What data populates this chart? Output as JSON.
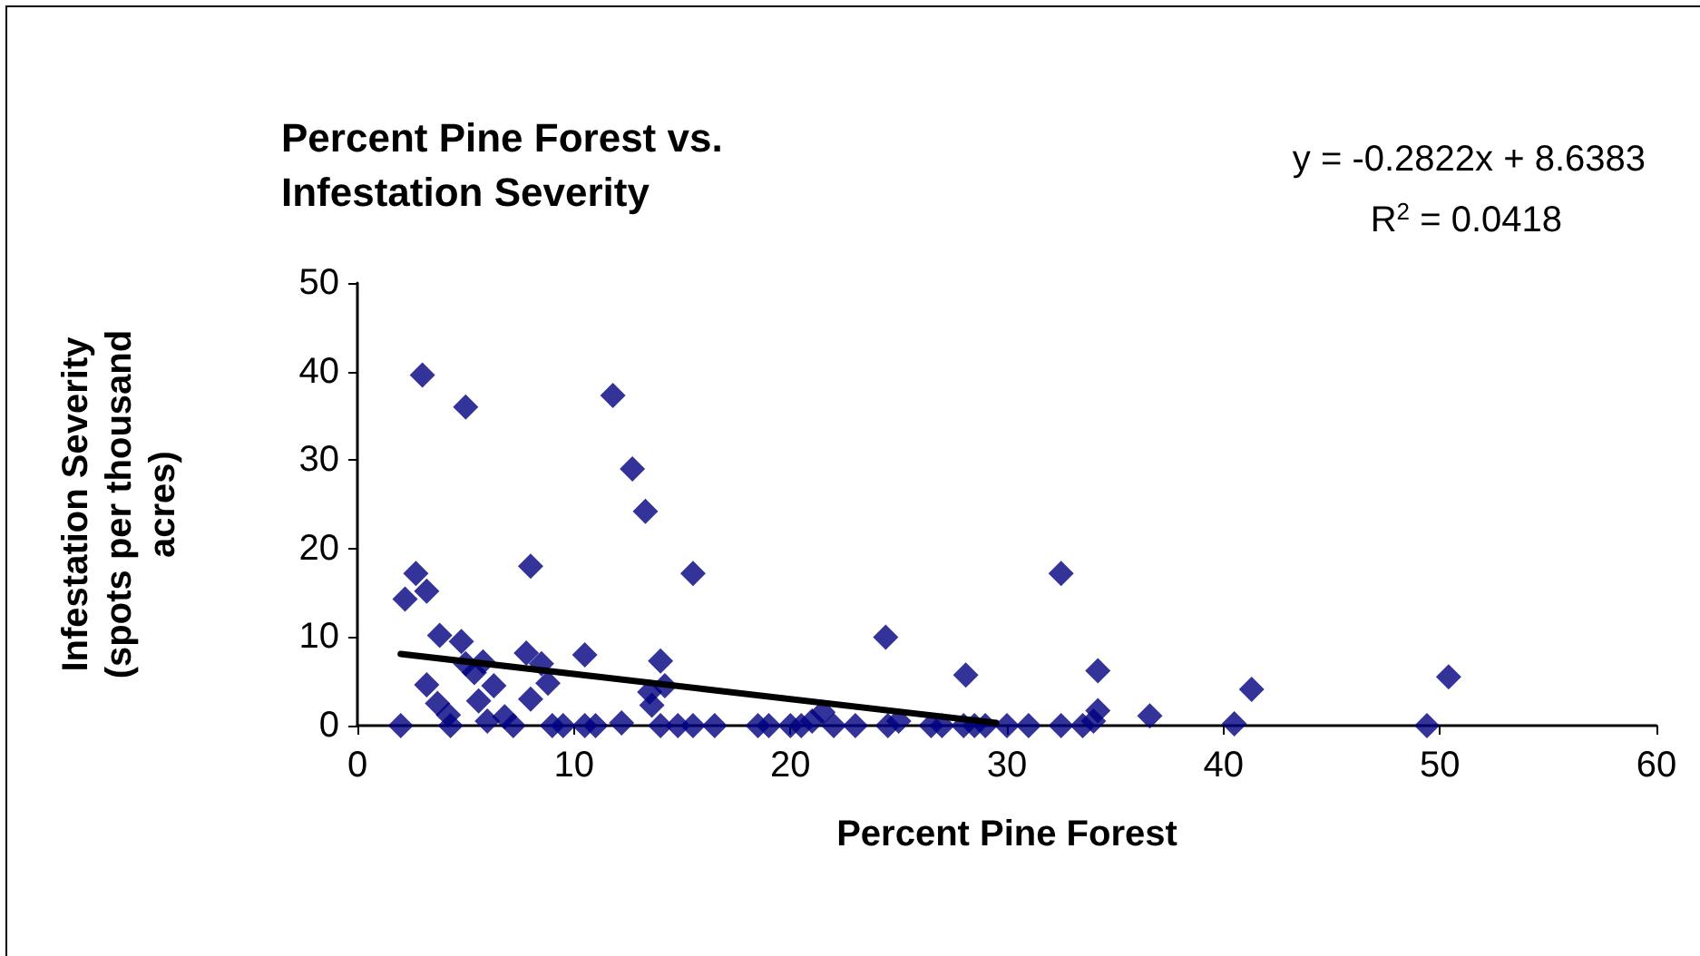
{
  "chart_data": {
    "type": "scatter",
    "title": "Percent Pine Forest vs. Infestation Severity",
    "xlabel": "Percent Pine Forest",
    "ylabel": "Infestation Severity (spots per thousand acres)",
    "annotations": [
      "y = -0.2822x + 8.6383",
      "R$^{2}$ = 0.0418"
    ],
    "marker": "diamond",
    "grid": false,
    "xlim": [
      0,
      60
    ],
    "xticks": [
      0,
      10,
      20,
      30,
      40,
      50,
      60
    ],
    "ylim": [
      0,
      50
    ],
    "yticks": [
      0,
      10,
      20,
      30,
      40,
      50
    ],
    "series": [
      {
        "color": "#000080",
        "x": [
          2.0,
          2.2,
          2.7,
          3.0,
          3.2,
          3.2,
          3.8,
          3.7,
          4.2,
          4.3,
          4.8,
          5.0,
          5.0,
          5.4,
          5.6,
          5.8,
          6.0,
          6.3,
          6.8,
          7.2,
          7.8,
          8.0,
          8.0,
          8.5,
          8.8,
          9.0,
          9.5,
          10.5,
          10.5,
          11.0,
          11.8,
          12.2,
          12.7,
          13.3,
          13.5,
          13.6,
          14.0,
          14.2,
          14.0,
          14.8,
          15.5,
          15.5,
          16.5,
          18.5,
          19.0,
          20.0,
          20.5,
          21.0,
          21.5,
          22.0,
          23.0,
          24.4,
          24.5,
          25.0,
          26.5,
          27.0,
          28.1,
          28.0,
          28.5,
          29.0,
          30.0,
          31.0,
          32.5,
          32.5,
          33.5,
          34.2,
          34.2,
          34.0,
          36.6,
          40.5,
          41.3,
          49.4,
          50.4
        ],
        "values": [
          0,
          14.3,
          17.2,
          39.6,
          15.2,
          4.6,
          10.2,
          2.5,
          1.2,
          0,
          9.5,
          36,
          7,
          6,
          2.8,
          7.2,
          0.5,
          4.5,
          1,
          0,
          8.2,
          3,
          18,
          7,
          4.8,
          0,
          0,
          8,
          0,
          0,
          37.3,
          0.3,
          29,
          24.2,
          3.8,
          2.3,
          7.3,
          4.5,
          0,
          0,
          17.2,
          0,
          0,
          0,
          0,
          0,
          0,
          0.5,
          1.5,
          0,
          0,
          10,
          0,
          0.5,
          0,
          0,
          5.7,
          0,
          0,
          0,
          0,
          0,
          17.2,
          0,
          0,
          6.2,
          1.7,
          0.5,
          1.1,
          0.2,
          4.1,
          0,
          5.5
        ]
      },
      {
        "type": "line",
        "color": "#000000",
        "marker": "none",
        "x": [
          2,
          29.5
        ],
        "values": [
          8.1,
          0.3
        ]
      }
    ]
  }
}
